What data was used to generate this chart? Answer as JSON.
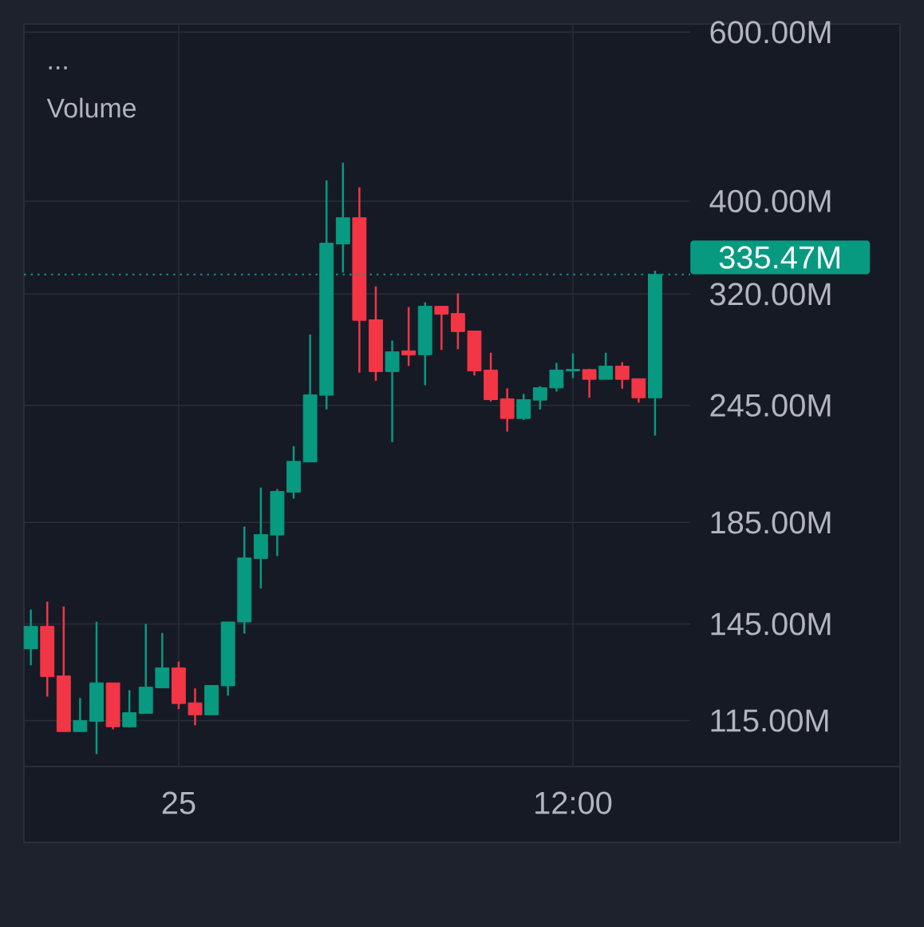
{
  "chart_data": {
    "type": "candlestick",
    "title": "Volume",
    "annotations": [
      "..."
    ],
    "categories": [
      null,
      null,
      null,
      null,
      null,
      null,
      null,
      null,
      null,
      "25",
      null,
      null,
      null,
      null,
      null,
      null,
      null,
      null,
      null,
      null,
      null,
      null,
      null,
      null,
      null,
      null,
      null,
      null,
      null,
      null,
      null,
      null,
      null,
      "12:00",
      null,
      null,
      null,
      null,
      null
    ],
    "ohlc": [
      [
        136.6,
        150.1,
        131.3,
        144.2
      ],
      [
        144.2,
        153.0,
        121.8,
        127.8
      ],
      [
        128.0,
        151.2,
        112.0,
        112.0
      ],
      [
        112.0,
        121.4,
        112.0,
        115.0
      ],
      [
        114.8,
        145.8,
        106.1,
        125.9
      ],
      [
        125.9,
        125.9,
        112.6,
        113.3
      ],
      [
        113.3,
        123.7,
        113.1,
        117.2
      ],
      [
        117.0,
        145.0,
        117.0,
        124.6
      ],
      [
        124.4,
        141.9,
        124.4,
        130.5
      ],
      [
        130.5,
        132.5,
        118.2,
        119.8
      ],
      [
        120.0,
        124.2,
        113.7,
        116.6
      ],
      [
        116.6,
        125.1,
        116.6,
        125.1
      ],
      [
        125.0,
        145.7,
        122.1,
        145.7
      ],
      [
        145.7,
        183.2,
        141.7,
        169.9
      ],
      [
        169.7,
        201.2,
        157.9,
        179.7
      ],
      [
        179.5,
        200.4,
        170.7,
        199.3
      ],
      [
        199.0,
        222.2,
        195.9,
        214.2
      ],
      [
        213.9,
        290.4,
        213.9,
        251.3
      ],
      [
        251.0,
        420.4,
        242.6,
        361.6
      ],
      [
        360.9,
        438.7,
        337.0,
        384.4
      ],
      [
        384.4,
        413.5,
        265.0,
        300.5
      ],
      [
        300.9,
        326.0,
        259.9,
        265.7
      ],
      [
        265.7,
        286.3,
        224.3,
        278.6
      ],
      [
        279.3,
        310.2,
        269.3,
        276.5
      ],
      [
        276.7,
        313.8,
        257.2,
        310.8
      ],
      [
        310.8,
        310.8,
        279.9,
        305.0
      ],
      [
        305.4,
        320.6,
        280.4,
        292.5
      ],
      [
        292.9,
        292.9,
        263.2,
        266.1
      ],
      [
        266.7,
        278.0,
        247.3,
        248.4
      ],
      [
        248.9,
        255.2,
        230.1,
        237.4
      ],
      [
        237.4,
        251.8,
        236.6,
        248.4
      ],
      [
        248.1,
        256.6,
        242.6,
        255.6
      ],
      [
        255.5,
        271.3,
        253.3,
        266.7
      ],
      [
        266.1,
        277.6,
        261.6,
        267.1
      ],
      [
        267.0,
        267.5,
        249.5,
        260.8
      ],
      [
        260.8,
        278.0,
        260.8,
        269.2
      ],
      [
        269.2,
        271.8,
        255.0,
        260.8
      ],
      [
        261.2,
        261.2,
        246.6,
        249.5
      ],
      [
        249.5,
        338.6,
        227.9,
        335.47
      ]
    ],
    "colors": [
      "#089981",
      "#f23645",
      "#f23645",
      "#089981",
      "#089981",
      "#f23645",
      "#089981",
      "#089981",
      "#089981",
      "#f23645",
      "#f23645",
      "#089981",
      "#089981",
      "#089981",
      "#089981",
      "#089981",
      "#089981",
      "#089981",
      "#089981",
      "#089981",
      "#f23645",
      "#f23645",
      "#089981",
      "#f23645",
      "#089981",
      "#f23645",
      "#f23645",
      "#f23645",
      "#f23645",
      "#f23645",
      "#089981",
      "#089981",
      "#089981",
      "#089981",
      "#f23645",
      "#089981",
      "#f23645",
      "#f23645",
      "#089981"
    ],
    "ylim": [
      103,
      612
    ],
    "log": "y",
    "yticks": [
      {
        "value": 115,
        "label": "115.00M"
      },
      {
        "value": 145,
        "label": "145.00M"
      },
      {
        "value": 185,
        "label": "185.00M"
      },
      {
        "value": 245,
        "label": "245.00M"
      },
      {
        "value": 320,
        "label": "320.00M"
      },
      {
        "value": 400,
        "label": "400.00M"
      },
      {
        "value": 600,
        "label": "600.00M"
      }
    ],
    "grid": true,
    "ref_lines": [
      {
        "axis": "y",
        "value": 335.47,
        "label": "335.47M",
        "color": "#089981",
        "line_style": "dotted"
      }
    ]
  }
}
